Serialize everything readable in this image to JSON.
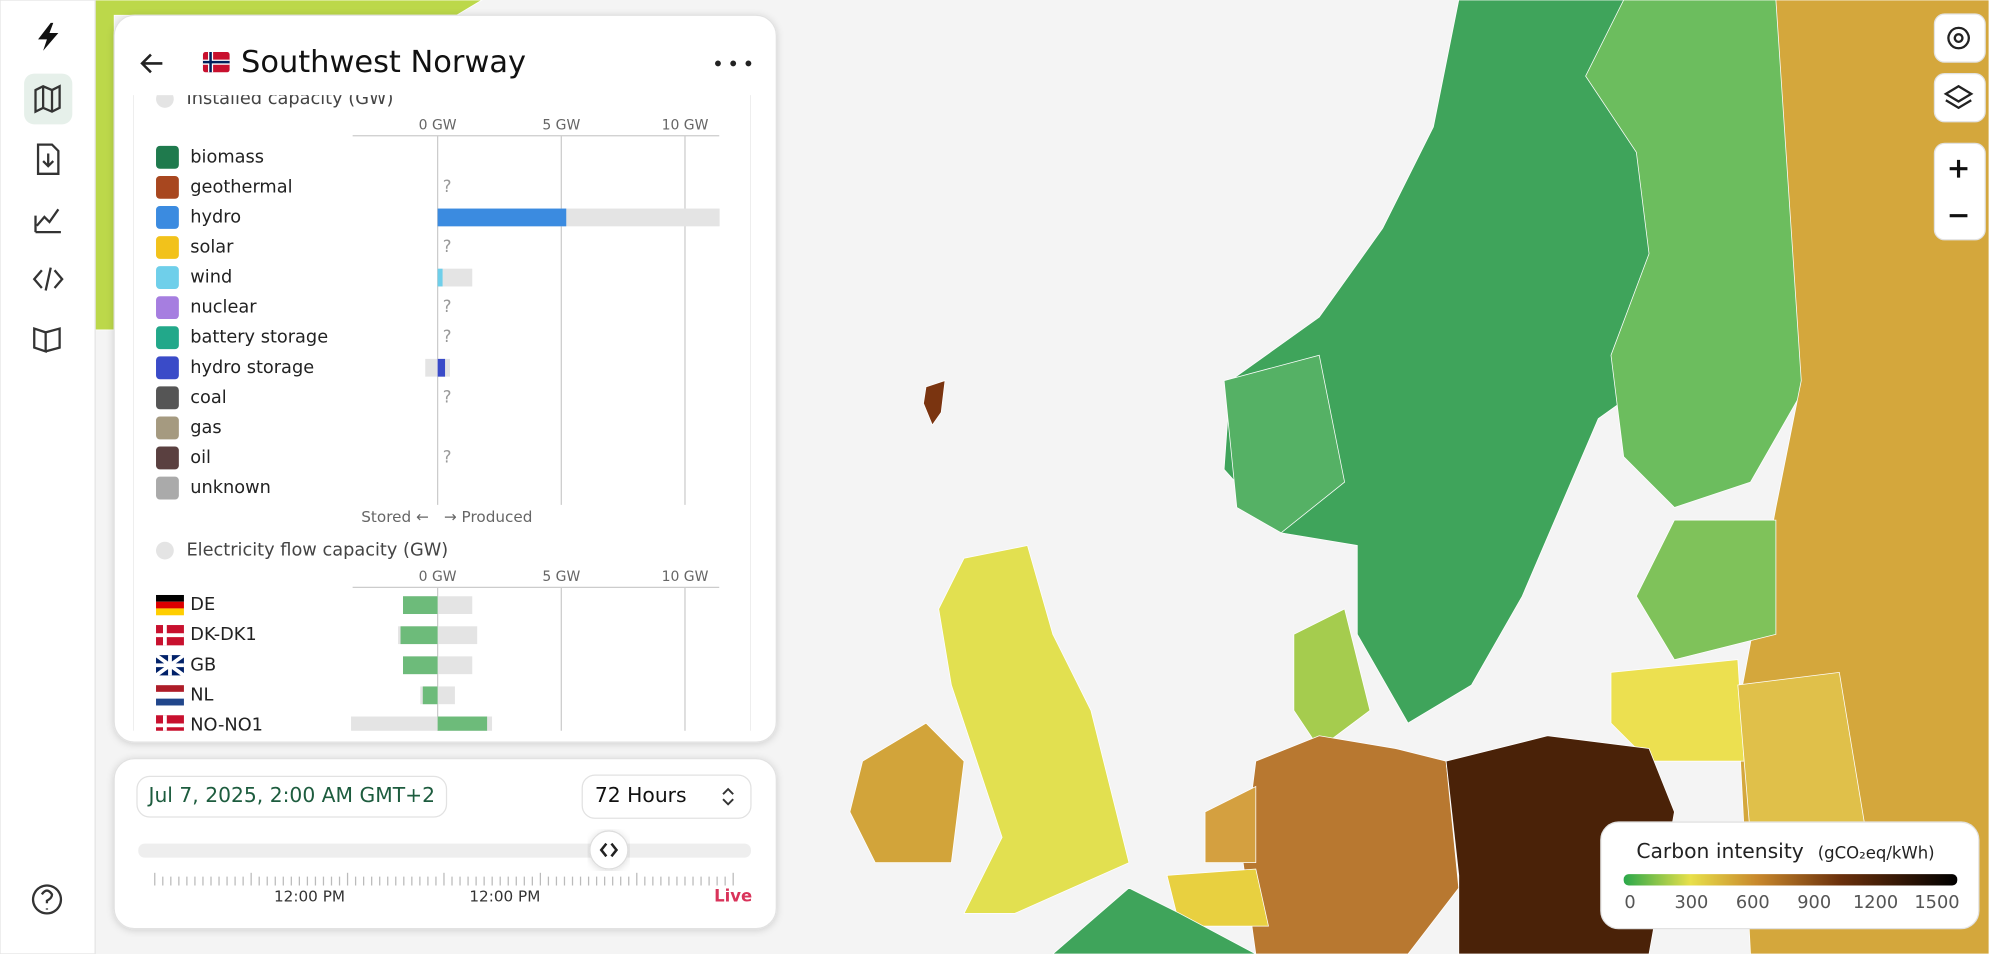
{
  "header": {
    "title": "Southwest Norway"
  },
  "installed_capacity": {
    "title": "Installed capacity (GW)",
    "axis_ticks": [
      {
        "value": 0,
        "label": "0 GW"
      },
      {
        "value": 5,
        "label": "5 GW"
      },
      {
        "value": 10,
        "label": "10 GW"
      }
    ],
    "rows": [
      {
        "label": "biomass",
        "color": "#1f7a4d",
        "value": 0,
        "capacity_min": 0,
        "capacity_max": 0
      },
      {
        "label": "geothermal",
        "color": "#a8471f",
        "value": null,
        "value_label": "?"
      },
      {
        "label": "hydro",
        "color": "#3b8be0",
        "value": 5.2,
        "capacity_min": 0,
        "capacity_max": 11.4
      },
      {
        "label": "solar",
        "color": "#f2c21b",
        "value": null,
        "value_label": "?"
      },
      {
        "label": "wind",
        "color": "#6fcfea",
        "value": 0.2,
        "capacity_min": 0,
        "capacity_max": 1.4
      },
      {
        "label": "nuclear",
        "color": "#a67ee0",
        "value": null,
        "value_label": "?"
      },
      {
        "label": "battery storage",
        "color": "#22a88a",
        "value": null,
        "value_label": "?"
      },
      {
        "label": "hydro storage",
        "color": "#3a4bc8",
        "value": 0.3,
        "capacity_min": -0.5,
        "capacity_max": 0.5
      },
      {
        "label": "coal",
        "color": "#555555",
        "value": null,
        "value_label": "?"
      },
      {
        "label": "gas",
        "color": "#a59a80",
        "value": 0,
        "capacity_min": 0,
        "capacity_max": 0
      },
      {
        "label": "oil",
        "color": "#5a4040",
        "value": null,
        "value_label": "?"
      },
      {
        "label": "unknown",
        "color": "#aaaaaa",
        "value": null
      }
    ],
    "stored_label": "Stored ←",
    "produced_label": "→ Produced"
  },
  "flow_capacity": {
    "title": "Electricity flow capacity (GW)",
    "axis_ticks": [
      {
        "value": 0,
        "label": "0 GW"
      },
      {
        "value": 5,
        "label": "5 GW"
      },
      {
        "value": 10,
        "label": "10 GW"
      }
    ],
    "rows": [
      {
        "label": "DE",
        "value": -1.4,
        "capacity_min": -1.4,
        "capacity_max": 1.4
      },
      {
        "label": "DK-DK1",
        "value": -1.5,
        "capacity_min": -1.6,
        "capacity_max": 1.6
      },
      {
        "label": "GB",
        "value": -1.4,
        "capacity_min": -1.4,
        "capacity_max": 1.4
      },
      {
        "label": "NL",
        "value": -0.6,
        "capacity_min": -0.7,
        "capacity_max": 0.7
      },
      {
        "label": "NO-NO1",
        "value": 2.0,
        "capacity_min": -3.5,
        "capacity_max": 2.2
      }
    ]
  },
  "timeline": {
    "date": "Jul 7, 2025, 2:00 AM GMT+2",
    "range": "72 Hours",
    "time_labels": [
      "12:00 PM",
      "12:00 PM"
    ],
    "live": "Live"
  },
  "legend": {
    "title": "Carbon intensity",
    "unit": "(gCO₂eq/kWh)",
    "ticks": [
      0,
      300,
      600,
      900,
      1200,
      1500
    ]
  }
}
